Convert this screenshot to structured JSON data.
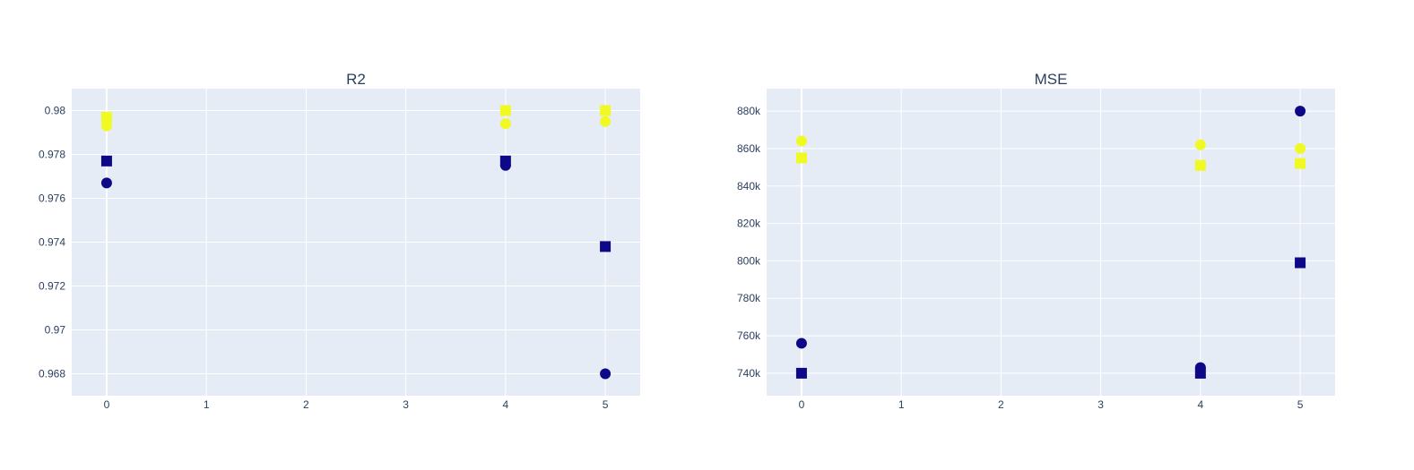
{
  "chart_data": [
    {
      "type": "scatter",
      "title": "R2",
      "xlabel": "",
      "ylabel": "",
      "xlim": [
        -0.35,
        5.35
      ],
      "ylim": [
        0.967,
        0.981
      ],
      "x_ticks": [
        0,
        1,
        2,
        3,
        4,
        5
      ],
      "x_tick_labels": [
        "0",
        "1",
        "2",
        "3",
        "4",
        "5"
      ],
      "y_ticks": [
        0.968,
        0.97,
        0.972,
        0.974,
        0.976,
        0.978,
        0.98
      ],
      "y_tick_labels": [
        "0.968",
        "0.97",
        "0.972",
        "0.974",
        "0.976",
        "0.978",
        "0.98"
      ],
      "grid": true,
      "series": [
        {
          "marker": "circle",
          "color": "#0d0887",
          "x": [
            0,
            4,
            5
          ],
          "y": [
            0.9767,
            0.9775,
            0.968
          ]
        },
        {
          "marker": "square",
          "color": "#0d0887",
          "x": [
            0,
            4,
            5
          ],
          "y": [
            0.9777,
            0.9777,
            0.9738
          ]
        },
        {
          "marker": "circle",
          "color": "#f0f921",
          "x": [
            0,
            4,
            5
          ],
          "y": [
            0.9793,
            0.9794,
            0.9795
          ]
        },
        {
          "marker": "square",
          "color": "#f0f921",
          "x": [
            0,
            4,
            5
          ],
          "y": [
            0.9797,
            0.98,
            0.98
          ]
        }
      ]
    },
    {
      "type": "scatter",
      "title": "MSE",
      "xlabel": "",
      "ylabel": "",
      "xlim": [
        -0.35,
        5.35
      ],
      "ylim": [
        728000,
        892000
      ],
      "x_ticks": [
        0,
        1,
        2,
        3,
        4,
        5
      ],
      "x_tick_labels": [
        "0",
        "1",
        "2",
        "3",
        "4",
        "5"
      ],
      "y_ticks": [
        740000,
        760000,
        780000,
        800000,
        820000,
        840000,
        860000,
        880000
      ],
      "y_tick_labels": [
        "740k",
        "760k",
        "780k",
        "800k",
        "820k",
        "840k",
        "860k",
        "880k"
      ],
      "grid": true,
      "series": [
        {
          "marker": "circle",
          "color": "#0d0887",
          "x": [
            0,
            4,
            5
          ],
          "y": [
            756000,
            743000,
            880000
          ]
        },
        {
          "marker": "square",
          "color": "#0d0887",
          "x": [
            0,
            4,
            5
          ],
          "y": [
            740000,
            740000,
            799000
          ]
        },
        {
          "marker": "circle",
          "color": "#f0f921",
          "x": [
            0,
            4,
            5
          ],
          "y": [
            864000,
            862000,
            860000
          ]
        },
        {
          "marker": "square",
          "color": "#f0f921",
          "x": [
            0,
            4,
            5
          ],
          "y": [
            855000,
            851000,
            852000
          ]
        }
      ]
    }
  ]
}
